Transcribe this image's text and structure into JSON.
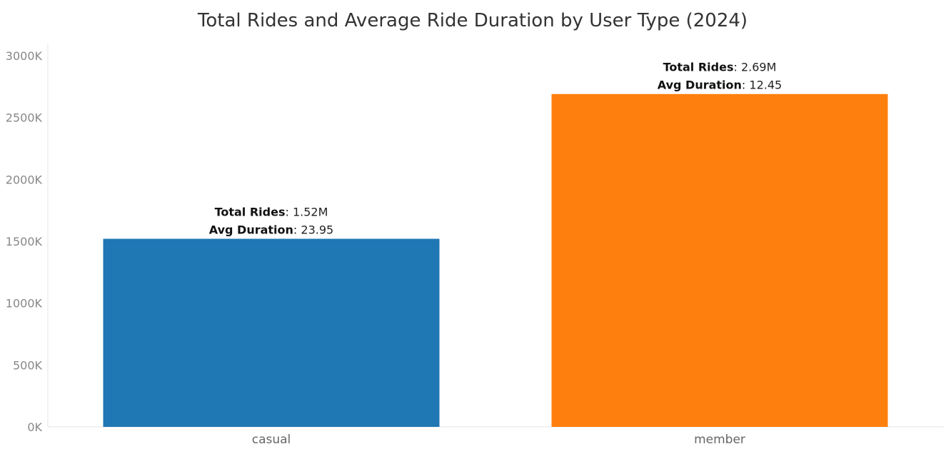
{
  "chart_data": {
    "type": "bar",
    "title": "Total Rides and Average Ride Duration by User Type (2024)",
    "categories": [
      "casual",
      "member"
    ],
    "series": [
      {
        "values": [
          1520000,
          2690000
        ],
        "colors": [
          "#1f77b4",
          "#ff7f0e"
        ]
      }
    ],
    "y_ticks": [
      "0K",
      "500K",
      "1000K",
      "1500K",
      "2000K",
      "2500K",
      "3000K"
    ],
    "ylim": [
      0,
      3000000
    ],
    "grid": false,
    "annotations": [
      {
        "rides_label": "Total Rides",
        "rides_value": "1.52M",
        "duration_label": "Avg Duration",
        "duration_value": "23.95"
      },
      {
        "rides_label": "Total Rides",
        "rides_value": "2.69M",
        "duration_label": "Avg Duration",
        "duration_value": "12.45"
      }
    ]
  }
}
